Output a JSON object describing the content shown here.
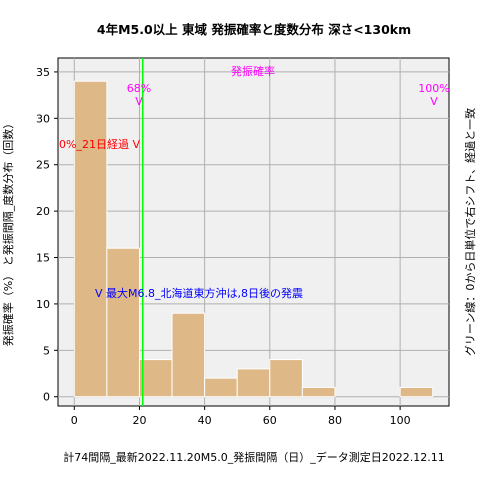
{
  "chart_data": {
    "type": "bar",
    "title": "4年M5.0以上 東域 発振確率と度数分布 深さ<130km",
    "xlabel": "計74間隔_最新2022.11.20M5.0_発振間隔（日）_データ測定日2022.12.11",
    "ylabel": "発振確率（%） と発振間隔_度数分布（回数）",
    "ylabel_right": "グリーン線：0から日単位で右シフト、経過と一致",
    "xlim": [
      -5,
      115
    ],
    "ylim": [
      -1,
      36.5
    ],
    "xticks": [
      0,
      20,
      40,
      60,
      80,
      100
    ],
    "yticks": [
      0,
      5,
      10,
      15,
      20,
      25,
      30,
      35
    ],
    "grid": true,
    "bins": [
      {
        "x0": 0,
        "x1": 10,
        "count": 34
      },
      {
        "x0": 10,
        "x1": 20,
        "count": 16
      },
      {
        "x0": 20,
        "x1": 30,
        "count": 4
      },
      {
        "x0": 30,
        "x1": 40,
        "count": 9
      },
      {
        "x0": 40,
        "x1": 50,
        "count": 2
      },
      {
        "x0": 50,
        "x1": 60,
        "count": 3
      },
      {
        "x0": 60,
        "x1": 70,
        "count": 4
      },
      {
        "x0": 70,
        "x1": 80,
        "count": 1
      },
      {
        "x0": 80,
        "x1": 90,
        "count": 0
      },
      {
        "x0": 90,
        "x1": 100,
        "count": 0
      },
      {
        "x0": 100,
        "x1": 110,
        "count": 1
      }
    ],
    "green_line_x": 21,
    "annotations": {
      "prob_label": "発振確率",
      "p68_pct": "68%",
      "p68_mark": "V",
      "p100_pct": "100%",
      "p100_mark": "V",
      "elapsed": "0%_21日経過 V",
      "max_event": "V 最大M6.8_北海道東方沖は,8日後の発震"
    },
    "colors": {
      "bar_fill": "#deb887",
      "bar_edge": "#ffffff",
      "plot_bg": "#f0f0f0",
      "grid": "#b0b0b0",
      "green_line": "#00ff00",
      "magenta": "#ff00ff",
      "red": "#ff0000",
      "blue": "#0000ff"
    }
  }
}
